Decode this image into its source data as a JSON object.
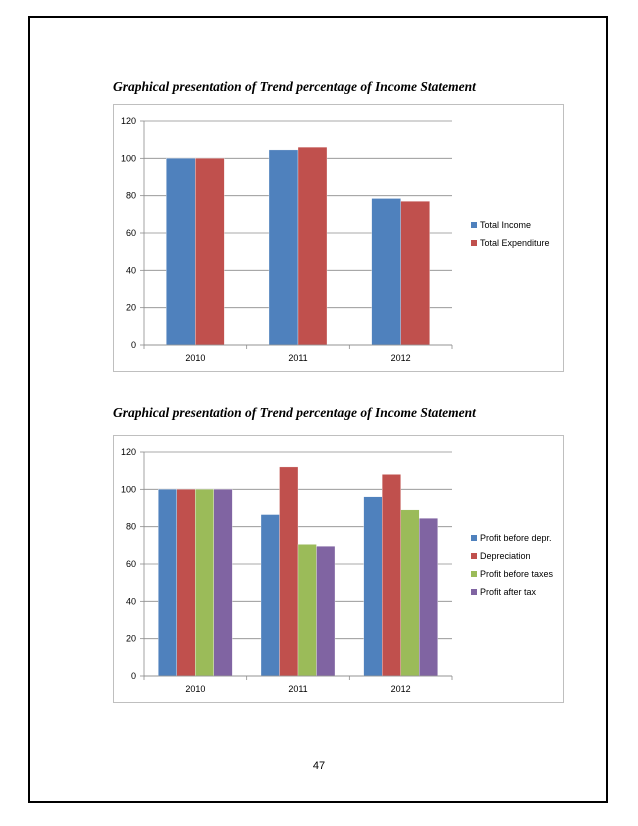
{
  "page": {
    "page_number": "47"
  },
  "chart_data": [
    {
      "type": "bar",
      "title": "Graphical presentation of Trend percentage of Income Statement",
      "categories": [
        "2010",
        "2011",
        "2012"
      ],
      "ylim": [
        0,
        120
      ],
      "yticks": [
        "0",
        "20",
        "40",
        "60",
        "80",
        "100",
        "120"
      ],
      "grid": true,
      "legend_position": "right",
      "series": [
        {
          "name": "Total Income",
          "color": "#4f81bd",
          "values": [
            100,
            104.5,
            78.5
          ]
        },
        {
          "name": "Total Expenditure",
          "color": "#c0504d",
          "values": [
            100,
            106,
            77
          ]
        }
      ]
    },
    {
      "type": "bar",
      "title": "Graphical presentation of Trend percentage of Income Statement",
      "categories": [
        "2010",
        "2011",
        "2012"
      ],
      "ylim": [
        0,
        120
      ],
      "yticks": [
        "0",
        "20",
        "40",
        "60",
        "80",
        "100",
        "120"
      ],
      "grid": true,
      "legend_position": "right",
      "series": [
        {
          "name": "Profit before depr.",
          "color": "#4f81bd",
          "values": [
            100,
            86.5,
            96
          ]
        },
        {
          "name": "Depreciation",
          "color": "#c0504d",
          "values": [
            100,
            112,
            108
          ]
        },
        {
          "name": "Profit before taxes",
          "color": "#9bbb59",
          "values": [
            100,
            70.5,
            89
          ]
        },
        {
          "name": "Profit after tax",
          "color": "#8064a2",
          "values": [
            100,
            69.5,
            84.5
          ]
        }
      ]
    }
  ]
}
